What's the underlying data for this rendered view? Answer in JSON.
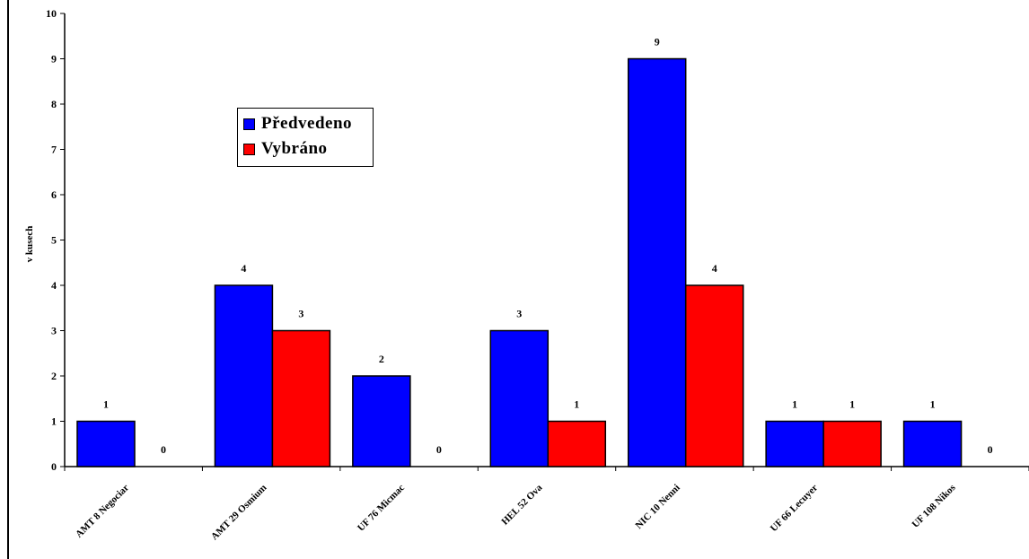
{
  "chart_data": {
    "type": "bar",
    "ylabel": "v kusech",
    "ylim": [
      0,
      10
    ],
    "yticks": [
      0,
      1,
      2,
      3,
      4,
      5,
      6,
      7,
      8,
      9,
      10
    ],
    "categories": [
      "AMT 8  Negociar",
      "AMT 29 Osmium",
      "UF 76   Micmac",
      "HEL 52  Ova",
      "NIC 10  Nenni",
      "UF 66 Lecuyer",
      "UF 108 Nikos"
    ],
    "series": [
      {
        "name": "Předvedeno",
        "color": "#0000ff",
        "values": [
          1,
          4,
          2,
          3,
          9,
          1,
          1
        ]
      },
      {
        "name": "Vybráno",
        "color": "#ff0000",
        "values": [
          0,
          3,
          0,
          1,
          4,
          1,
          0
        ]
      }
    ],
    "legend_position": "top-left",
    "data_labels": true,
    "grid": false
  }
}
